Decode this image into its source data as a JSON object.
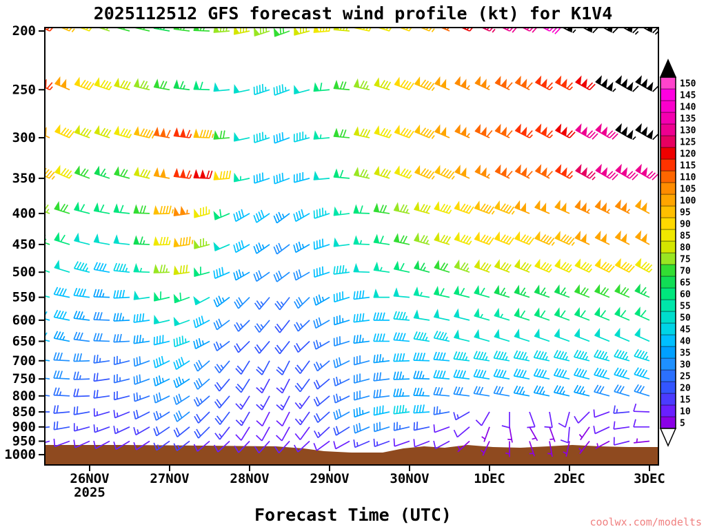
{
  "page": {
    "title": "2025112512 GFS forecast wind profile (kt) for K1V4",
    "xlabel": "Forecast Time (UTC)",
    "year_label": "2025",
    "watermark": "coolwx.com/modelts"
  },
  "chart_data": {
    "type": "wind-barb-profile",
    "title": "2025112512 GFS forecast wind profile (kt) for K1V4",
    "xlabel": "Forecast Time (UTC)",
    "units": "kt",
    "station": "K1V4",
    "model_run": "2025112512",
    "axis": {
      "y_scale": "log-pressure",
      "pressure_range_hPa": [
        200,
        1000
      ],
      "x_range_hours": [
        0,
        180
      ]
    },
    "x_hours": [
      0,
      6,
      12,
      18,
      24,
      30,
      36,
      42,
      48,
      54,
      60,
      66,
      72,
      78,
      84,
      90,
      96,
      102,
      108,
      114,
      120,
      126,
      132,
      138,
      144,
      150,
      156,
      162,
      168,
      174,
      180
    ],
    "x_axis": {
      "tick_hours": [
        12,
        36,
        60,
        84,
        108,
        132,
        156,
        180
      ],
      "tick_labels": [
        "26NOV",
        "27NOV",
        "28NOV",
        "29NOV",
        "30NOV",
        "1DEC",
        "2DEC",
        "3DEC"
      ],
      "year": "2025"
    },
    "y_ticks": [
      200,
      250,
      300,
      350,
      400,
      450,
      500,
      550,
      600,
      650,
      700,
      750,
      800,
      850,
      900,
      950,
      1000
    ],
    "levels": [
      {
        "pressure": 200,
        "speeds_kt": [
          115,
          95,
          85,
          75,
          70,
          68,
          65,
          70,
          72,
          75,
          78,
          75,
          72,
          80,
          85,
          82,
          85,
          85,
          88,
          95,
          110,
          120,
          125,
          130,
          130,
          140,
          155,
          160,
          160,
          165,
          165
        ],
        "dirs_deg": [
          295,
          293,
          290,
          288,
          285,
          283,
          280,
          277,
          272,
          265,
          258,
          252,
          250,
          255,
          265,
          275,
          282,
          287,
          290,
          292,
          293,
          294,
          295,
          296,
          297,
          298,
          298,
          299,
          300,
          300,
          300
        ]
      },
      {
        "pressure": 250,
        "speeds_kt": [
          115,
          100,
          88,
          85,
          80,
          75,
          72,
          65,
          58,
          52,
          48,
          45,
          45,
          50,
          60,
          68,
          75,
          82,
          88,
          95,
          100,
          105,
          105,
          110,
          110,
          115,
          115,
          120,
          155,
          160,
          160
        ],
        "dirs_deg": [
          295,
          293,
          290,
          288,
          285,
          283,
          280,
          277,
          272,
          265,
          258,
          252,
          250,
          255,
          265,
          275,
          282,
          287,
          290,
          292,
          293,
          294,
          295,
          296,
          297,
          298,
          298,
          299,
          300,
          300,
          300
        ]
      },
      {
        "pressure": 300,
        "speeds_kt": [
          100,
          88,
          82,
          80,
          85,
          95,
          110,
          115,
          95,
          70,
          50,
          45,
          42,
          45,
          55,
          70,
          80,
          85,
          90,
          95,
          100,
          105,
          110,
          110,
          115,
          115,
          120,
          130,
          130,
          155,
          160
        ],
        "dirs_deg": [
          295,
          293,
          290,
          288,
          285,
          283,
          280,
          277,
          272,
          265,
          258,
          252,
          250,
          255,
          265,
          275,
          282,
          287,
          290,
          292,
          293,
          294,
          295,
          296,
          297,
          298,
          298,
          299,
          300,
          300,
          300
        ]
      },
      {
        "pressure": 350,
        "speeds_kt": [
          95,
          85,
          70,
          65,
          68,
          80,
          100,
          115,
          120,
          90,
          55,
          42,
          40,
          42,
          50,
          60,
          75,
          80,
          85,
          95,
          95,
          100,
          105,
          110,
          110,
          110,
          115,
          125,
          130,
          130,
          130
        ],
        "dirs_deg": [
          295,
          293,
          290,
          288,
          285,
          283,
          280,
          277,
          272,
          265,
          258,
          252,
          250,
          255,
          265,
          275,
          282,
          287,
          290,
          292,
          293,
          294,
          295,
          296,
          297,
          298,
          298,
          299,
          300,
          300,
          300
        ]
      },
      {
        "pressure": 400,
        "speeds_kt": [
          75,
          68,
          62,
          58,
          60,
          72,
          95,
          105,
          85,
          60,
          42,
          38,
          35,
          38,
          45,
          55,
          62,
          70,
          75,
          80,
          85,
          90,
          95,
          95,
          100,
          100,
          100,
          105,
          105,
          105,
          100
        ],
        "dirs_deg": [
          290,
          287,
          284,
          280,
          276,
          272,
          268,
          262,
          255,
          247,
          240,
          235,
          233,
          240,
          252,
          263,
          272,
          278,
          282,
          285,
          287,
          289,
          290,
          291,
          292,
          293,
          294,
          295,
          296,
          297,
          298
        ]
      },
      {
        "pressure": 450,
        "speeds_kt": [
          65,
          58,
          52,
          48,
          52,
          65,
          85,
          95,
          75,
          50,
          38,
          33,
          32,
          35,
          42,
          50,
          55,
          60,
          68,
          75,
          80,
          85,
          88,
          90,
          92,
          95,
          95,
          98,
          100,
          100,
          100
        ],
        "dirs_deg": [
          290,
          287,
          284,
          280,
          276,
          272,
          268,
          262,
          255,
          247,
          240,
          235,
          233,
          240,
          252,
          263,
          272,
          278,
          282,
          285,
          287,
          289,
          290,
          291,
          292,
          293,
          294,
          295,
          296,
          297,
          298
        ]
      },
      {
        "pressure": 500,
        "speeds_kt": [
          55,
          50,
          45,
          42,
          45,
          55,
          75,
          80,
          60,
          42,
          33,
          30,
          28,
          32,
          38,
          45,
          50,
          55,
          60,
          65,
          70,
          75,
          78,
          80,
          82,
          85,
          85,
          85,
          88,
          88,
          85
        ],
        "dirs_deg": [
          290,
          287,
          284,
          280,
          276,
          272,
          268,
          262,
          255,
          247,
          240,
          235,
          233,
          240,
          252,
          263,
          272,
          278,
          282,
          285,
          287,
          289,
          290,
          291,
          292,
          293,
          294,
          295,
          296,
          297,
          298
        ]
      },
      {
        "pressure": 550,
        "speeds_kt": [
          48,
          42,
          38,
          36,
          40,
          48,
          58,
          60,
          48,
          36,
          28,
          26,
          25,
          28,
          33,
          38,
          42,
          48,
          52,
          55,
          58,
          60,
          62,
          65,
          65,
          65,
          65,
          68,
          68,
          68,
          65
        ],
        "dirs_deg": [
          285,
          281,
          277,
          272,
          267,
          262,
          257,
          250,
          242,
          233,
          225,
          220,
          218,
          226,
          240,
          253,
          263,
          270,
          275,
          279,
          282,
          284,
          286,
          287,
          288,
          289,
          290,
          291,
          292,
          293,
          294
        ]
      },
      {
        "pressure": 600,
        "speeds_kt": [
          42,
          38,
          33,
          30,
          33,
          40,
          48,
          50,
          40,
          30,
          25,
          23,
          22,
          25,
          30,
          35,
          38,
          42,
          45,
          48,
          50,
          52,
          55,
          55,
          58,
          58,
          58,
          58,
          60,
          60,
          58
        ],
        "dirs_deg": [
          285,
          281,
          277,
          272,
          267,
          262,
          257,
          250,
          242,
          233,
          225,
          220,
          218,
          226,
          240,
          253,
          263,
          270,
          275,
          279,
          282,
          284,
          286,
          287,
          288,
          289,
          290,
          291,
          292,
          293,
          294
        ]
      },
      {
        "pressure": 650,
        "speeds_kt": [
          40,
          35,
          30,
          28,
          30,
          35,
          42,
          45,
          35,
          27,
          22,
          20,
          20,
          22,
          27,
          32,
          35,
          38,
          40,
          44,
          46,
          48,
          50,
          50,
          52,
          52,
          52,
          52,
          52,
          52,
          50
        ],
        "dirs_deg": [
          285,
          281,
          277,
          272,
          267,
          262,
          257,
          250,
          242,
          233,
          225,
          220,
          218,
          226,
          240,
          253,
          263,
          270,
          275,
          279,
          282,
          284,
          286,
          287,
          288,
          289,
          290,
          291,
          292,
          293,
          294
        ]
      },
      {
        "pressure": 700,
        "speeds_kt": [
          35,
          32,
          28,
          25,
          27,
          32,
          38,
          40,
          32,
          25,
          20,
          18,
          18,
          20,
          25,
          28,
          32,
          35,
          38,
          40,
          42,
          44,
          45,
          45,
          46,
          46,
          46,
          45,
          45,
          45,
          44
        ],
        "dirs_deg": [
          278,
          273,
          268,
          262,
          256,
          250,
          244,
          237,
          229,
          220,
          212,
          208,
          207,
          216,
          230,
          244,
          255,
          263,
          268,
          272,
          275,
          277,
          279,
          280,
          281,
          282,
          283,
          284,
          285,
          286,
          287
        ]
      },
      {
        "pressure": 750,
        "speeds_kt": [
          30,
          28,
          25,
          22,
          24,
          28,
          33,
          35,
          28,
          22,
          18,
          16,
          16,
          18,
          22,
          25,
          28,
          30,
          33,
          35,
          38,
          40,
          40,
          40,
          42,
          42,
          42,
          40,
          40,
          40,
          38
        ],
        "dirs_deg": [
          278,
          273,
          268,
          262,
          256,
          250,
          244,
          237,
          229,
          220,
          212,
          208,
          207,
          216,
          230,
          244,
          255,
          263,
          268,
          272,
          275,
          277,
          279,
          280,
          281,
          282,
          283,
          284,
          285,
          286,
          287
        ]
      },
      {
        "pressure": 800,
        "speeds_kt": [
          26,
          24,
          22,
          20,
          20,
          24,
          28,
          30,
          25,
          20,
          16,
          15,
          14,
          16,
          20,
          24,
          28,
          32,
          35,
          35,
          32,
          30,
          30,
          32,
          33,
          35,
          35,
          33,
          32,
          30,
          30
        ],
        "dirs_deg": [
          278,
          273,
          268,
          262,
          256,
          250,
          244,
          237,
          229,
          220,
          212,
          208,
          207,
          216,
          230,
          244,
          255,
          263,
          268,
          272,
          275,
          277,
          279,
          280,
          281,
          282,
          283,
          284,
          285,
          286,
          287
        ]
      },
      {
        "pressure": 850,
        "speeds_kt": [
          22,
          20,
          18,
          16,
          16,
          20,
          25,
          28,
          22,
          18,
          14,
          12,
          12,
          15,
          20,
          28,
          35,
          42,
          45,
          40,
          25,
          15,
          10,
          8,
          8,
          10,
          12,
          10,
          12,
          15,
          12
        ],
        "dirs_deg": [
          270,
          265,
          260,
          254,
          248,
          243,
          238,
          232,
          225,
          217,
          210,
          207,
          207,
          215,
          228,
          241,
          251,
          258,
          263,
          266,
          260,
          240,
          210,
          180,
          160,
          170,
          195,
          225,
          250,
          265,
          272
        ]
      },
      {
        "pressure": 900,
        "speeds_kt": [
          20,
          18,
          15,
          14,
          14,
          16,
          20,
          22,
          18,
          15,
          12,
          10,
          10,
          12,
          16,
          22,
          28,
          30,
          25,
          18,
          12,
          8,
          6,
          5,
          5,
          6,
          8,
          6,
          8,
          10,
          8
        ],
        "dirs_deg": [
          265,
          260,
          255,
          250,
          245,
          240,
          236,
          231,
          225,
          218,
          212,
          209,
          209,
          216,
          227,
          238,
          247,
          253,
          257,
          258,
          250,
          230,
          200,
          170,
          150,
          160,
          185,
          215,
          245,
          262,
          270
        ]
      },
      {
        "pressure": 950,
        "speeds_kt": [
          12,
          12,
          10,
          10,
          10,
          12,
          15,
          15,
          12,
          10,
          8,
          8,
          8,
          8,
          10,
          12,
          15,
          15,
          12,
          10,
          8,
          6,
          5,
          5,
          5,
          6,
          6,
          5,
          6,
          8,
          6
        ],
        "dirs_deg": [
          255,
          250,
          246,
          242,
          239,
          237,
          235,
          233,
          230,
          227,
          224,
          222,
          222,
          227,
          234,
          241,
          247,
          250,
          251,
          249,
          242,
          228,
          205,
          180,
          162,
          170,
          192,
          218,
          242,
          256,
          264
        ]
      }
    ],
    "legend": {
      "units": "kt",
      "values": [
        5,
        10,
        15,
        20,
        25,
        30,
        35,
        40,
        45,
        50,
        55,
        60,
        65,
        70,
        75,
        80,
        85,
        90,
        95,
        100,
        105,
        110,
        115,
        120,
        125,
        130,
        135,
        140,
        145,
        150
      ],
      "colors": [
        "#8a00e6",
        "#6a1fff",
        "#4b3bff",
        "#3355ff",
        "#2b70ff",
        "#1e90ff",
        "#00a0ff",
        "#00bfff",
        "#00d4e6",
        "#00ddcc",
        "#00e6aa",
        "#00e67d",
        "#11dd55",
        "#33dd33",
        "#99e622",
        "#d4e600",
        "#f0e800",
        "#ffd900",
        "#ffbf00",
        "#ffa500",
        "#ff8c00",
        "#ff6600",
        "#ff3300",
        "#ee0000",
        "#e60060",
        "#ee0090",
        "#f400b0",
        "#fa00cc",
        "#ff00e0",
        "#ff44cc"
      ],
      "over_color": "#000000",
      "under_color": "#ffffff"
    },
    "terrain": {
      "color": "#8f4a1f",
      "profile": [
        [
          65,
          646
        ],
        [
          180,
          646
        ],
        [
          300,
          647
        ],
        [
          400,
          648
        ],
        [
          440,
          651
        ],
        [
          470,
          655
        ],
        [
          510,
          657
        ],
        [
          555,
          657
        ],
        [
          585,
          651
        ],
        [
          615,
          648
        ],
        [
          645,
          650
        ],
        [
          678,
          646
        ],
        [
          715,
          649
        ],
        [
          755,
          650
        ],
        [
          795,
          648
        ],
        [
          830,
          646
        ],
        [
          870,
          648
        ],
        [
          912,
          649
        ],
        [
          955,
          649
        ]
      ]
    }
  }
}
